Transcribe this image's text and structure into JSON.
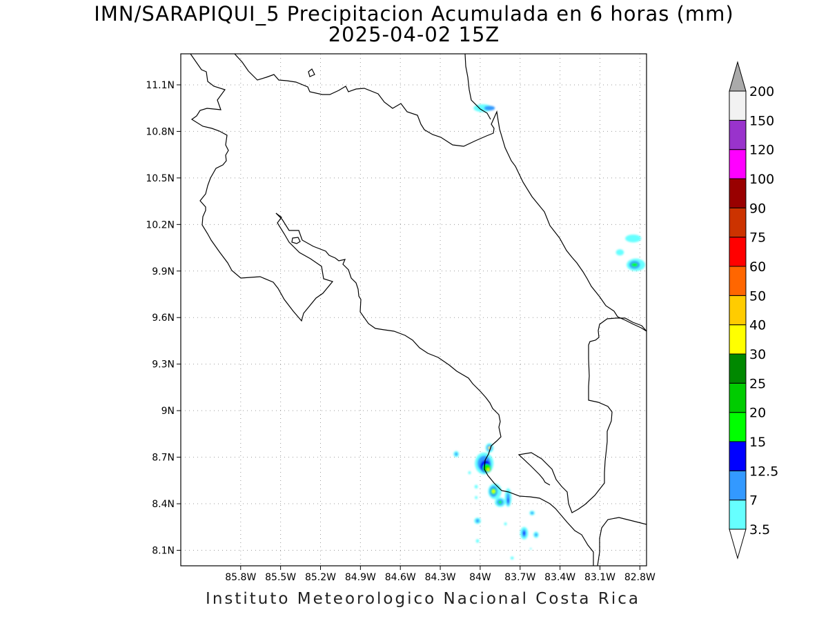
{
  "title": {
    "line1": "IMN/SARAPIQUI_5 Precipitacion Acumulada en 6 horas (mm)",
    "line2": "2025-04-02 15Z"
  },
  "credit": "Instituto Meteorologico Nacional Costa Rica",
  "map": {
    "lon_range": [
      -86.25,
      -82.75
    ],
    "lat_range": [
      8.0,
      11.3
    ],
    "lon_ticks": [
      "85.8W",
      "85.5W",
      "85.2W",
      "84.9W",
      "84.6W",
      "84.3W",
      "84W",
      "83.7W",
      "83.4W",
      "83.1W",
      "82.8W"
    ],
    "lat_ticks": [
      "11.1N",
      "10.8N",
      "10.5N",
      "10.2N",
      "9.9N",
      "9.6N",
      "9.3N",
      "9N",
      "8.7N",
      "8.4N",
      "8.1N"
    ],
    "grid": "dotted",
    "coastline_color": "#000000"
  },
  "colorbar": {
    "levels": [
      "3.5",
      "7",
      "12.5",
      "15",
      "20",
      "25",
      "30",
      "40",
      "50",
      "60",
      "75",
      "90",
      "100",
      "120",
      "150",
      "200"
    ],
    "colors": [
      "#66ffff",
      "#3399ff",
      "#0000ff",
      "#00ff00",
      "#00cc00",
      "#008800",
      "#ffff00",
      "#ffcc00",
      "#ff6600",
      "#ff0000",
      "#cc3300",
      "#990000",
      "#ff00ff",
      "#9933cc",
      "#f2f2f2"
    ],
    "over_color": "#aaaaaa",
    "under_color": "#ffffff"
  },
  "precip_areas": [
    {
      "name": "north-border",
      "cells": [
        [
          -83.98,
          10.95,
          0.07,
          0.025,
          1
        ],
        [
          -83.93,
          10.95,
          0.04,
          0.015,
          2
        ]
      ]
    },
    {
      "name": "caribbean-east",
      "cells": [
        [
          -82.85,
          10.11,
          0.06,
          0.025,
          1
        ],
        [
          -82.95,
          10.02,
          0.03,
          0.02,
          1
        ],
        [
          -82.83,
          9.94,
          0.07,
          0.04,
          1
        ],
        [
          -82.84,
          9.94,
          0.04,
          0.025,
          2
        ],
        [
          -82.84,
          9.94,
          0.025,
          0.012,
          4
        ]
      ]
    },
    {
      "name": "osa-cluster",
      "cells": [
        [
          -84.18,
          8.72,
          0.02,
          0.02,
          1
        ],
        [
          -84.18,
          8.72,
          0.01,
          0.01,
          2
        ],
        [
          -83.97,
          8.66,
          0.07,
          0.07,
          1
        ],
        [
          -83.97,
          8.66,
          0.05,
          0.05,
          2
        ],
        [
          -83.96,
          8.64,
          0.04,
          0.04,
          3
        ],
        [
          -83.95,
          8.63,
          0.03,
          0.025,
          4
        ],
        [
          -83.94,
          8.62,
          0.02,
          0.015,
          5
        ],
        [
          -83.94,
          8.62,
          0.01,
          0.01,
          7
        ],
        [
          -83.93,
          8.76,
          0.03,
          0.03,
          1
        ],
        [
          -83.93,
          8.76,
          0.02,
          0.02,
          2
        ],
        [
          -83.93,
          8.76,
          0.01,
          0.01,
          7
        ],
        [
          -83.89,
          8.48,
          0.05,
          0.05,
          1
        ],
        [
          -83.9,
          8.48,
          0.03,
          0.035,
          2
        ],
        [
          -83.9,
          8.48,
          0.02,
          0.02,
          4
        ],
        [
          -83.9,
          8.48,
          0.01,
          0.01,
          7
        ],
        [
          -83.85,
          8.41,
          0.04,
          0.03,
          1
        ],
        [
          -83.85,
          8.41,
          0.025,
          0.02,
          2
        ],
        [
          -83.85,
          8.41,
          0.012,
          0.01,
          4
        ],
        [
          -83.79,
          8.44,
          0.025,
          0.06,
          1
        ],
        [
          -83.79,
          8.43,
          0.012,
          0.04,
          2
        ],
        [
          -83.79,
          8.42,
          0.006,
          0.015,
          3
        ],
        [
          -84.08,
          8.6,
          0.01,
          0.01,
          1
        ],
        [
          -84.03,
          8.51,
          0.012,
          0.012,
          1
        ],
        [
          -84.03,
          8.44,
          0.01,
          0.01,
          1
        ],
        [
          -84.02,
          8.29,
          0.025,
          0.02,
          1
        ],
        [
          -84.02,
          8.29,
          0.012,
          0.012,
          2
        ],
        [
          -84.02,
          8.16,
          0.012,
          0.012,
          1
        ],
        [
          -83.81,
          8.27,
          0.01,
          0.01,
          1
        ],
        [
          -83.76,
          8.05,
          0.012,
          0.01,
          1
        ],
        [
          -83.67,
          8.21,
          0.03,
          0.04,
          1
        ],
        [
          -83.67,
          8.21,
          0.015,
          0.025,
          2
        ],
        [
          -83.67,
          8.21,
          0.008,
          0.012,
          3
        ],
        [
          -83.58,
          8.2,
          0.02,
          0.02,
          1
        ],
        [
          -83.58,
          8.2,
          0.01,
          0.01,
          2
        ],
        [
          -83.61,
          8.34,
          0.02,
          0.015,
          1
        ],
        [
          -83.61,
          8.34,
          0.01,
          0.008,
          2
        ],
        [
          -83.62,
          8.11,
          0.006,
          0.006,
          1
        ]
      ]
    }
  ]
}
